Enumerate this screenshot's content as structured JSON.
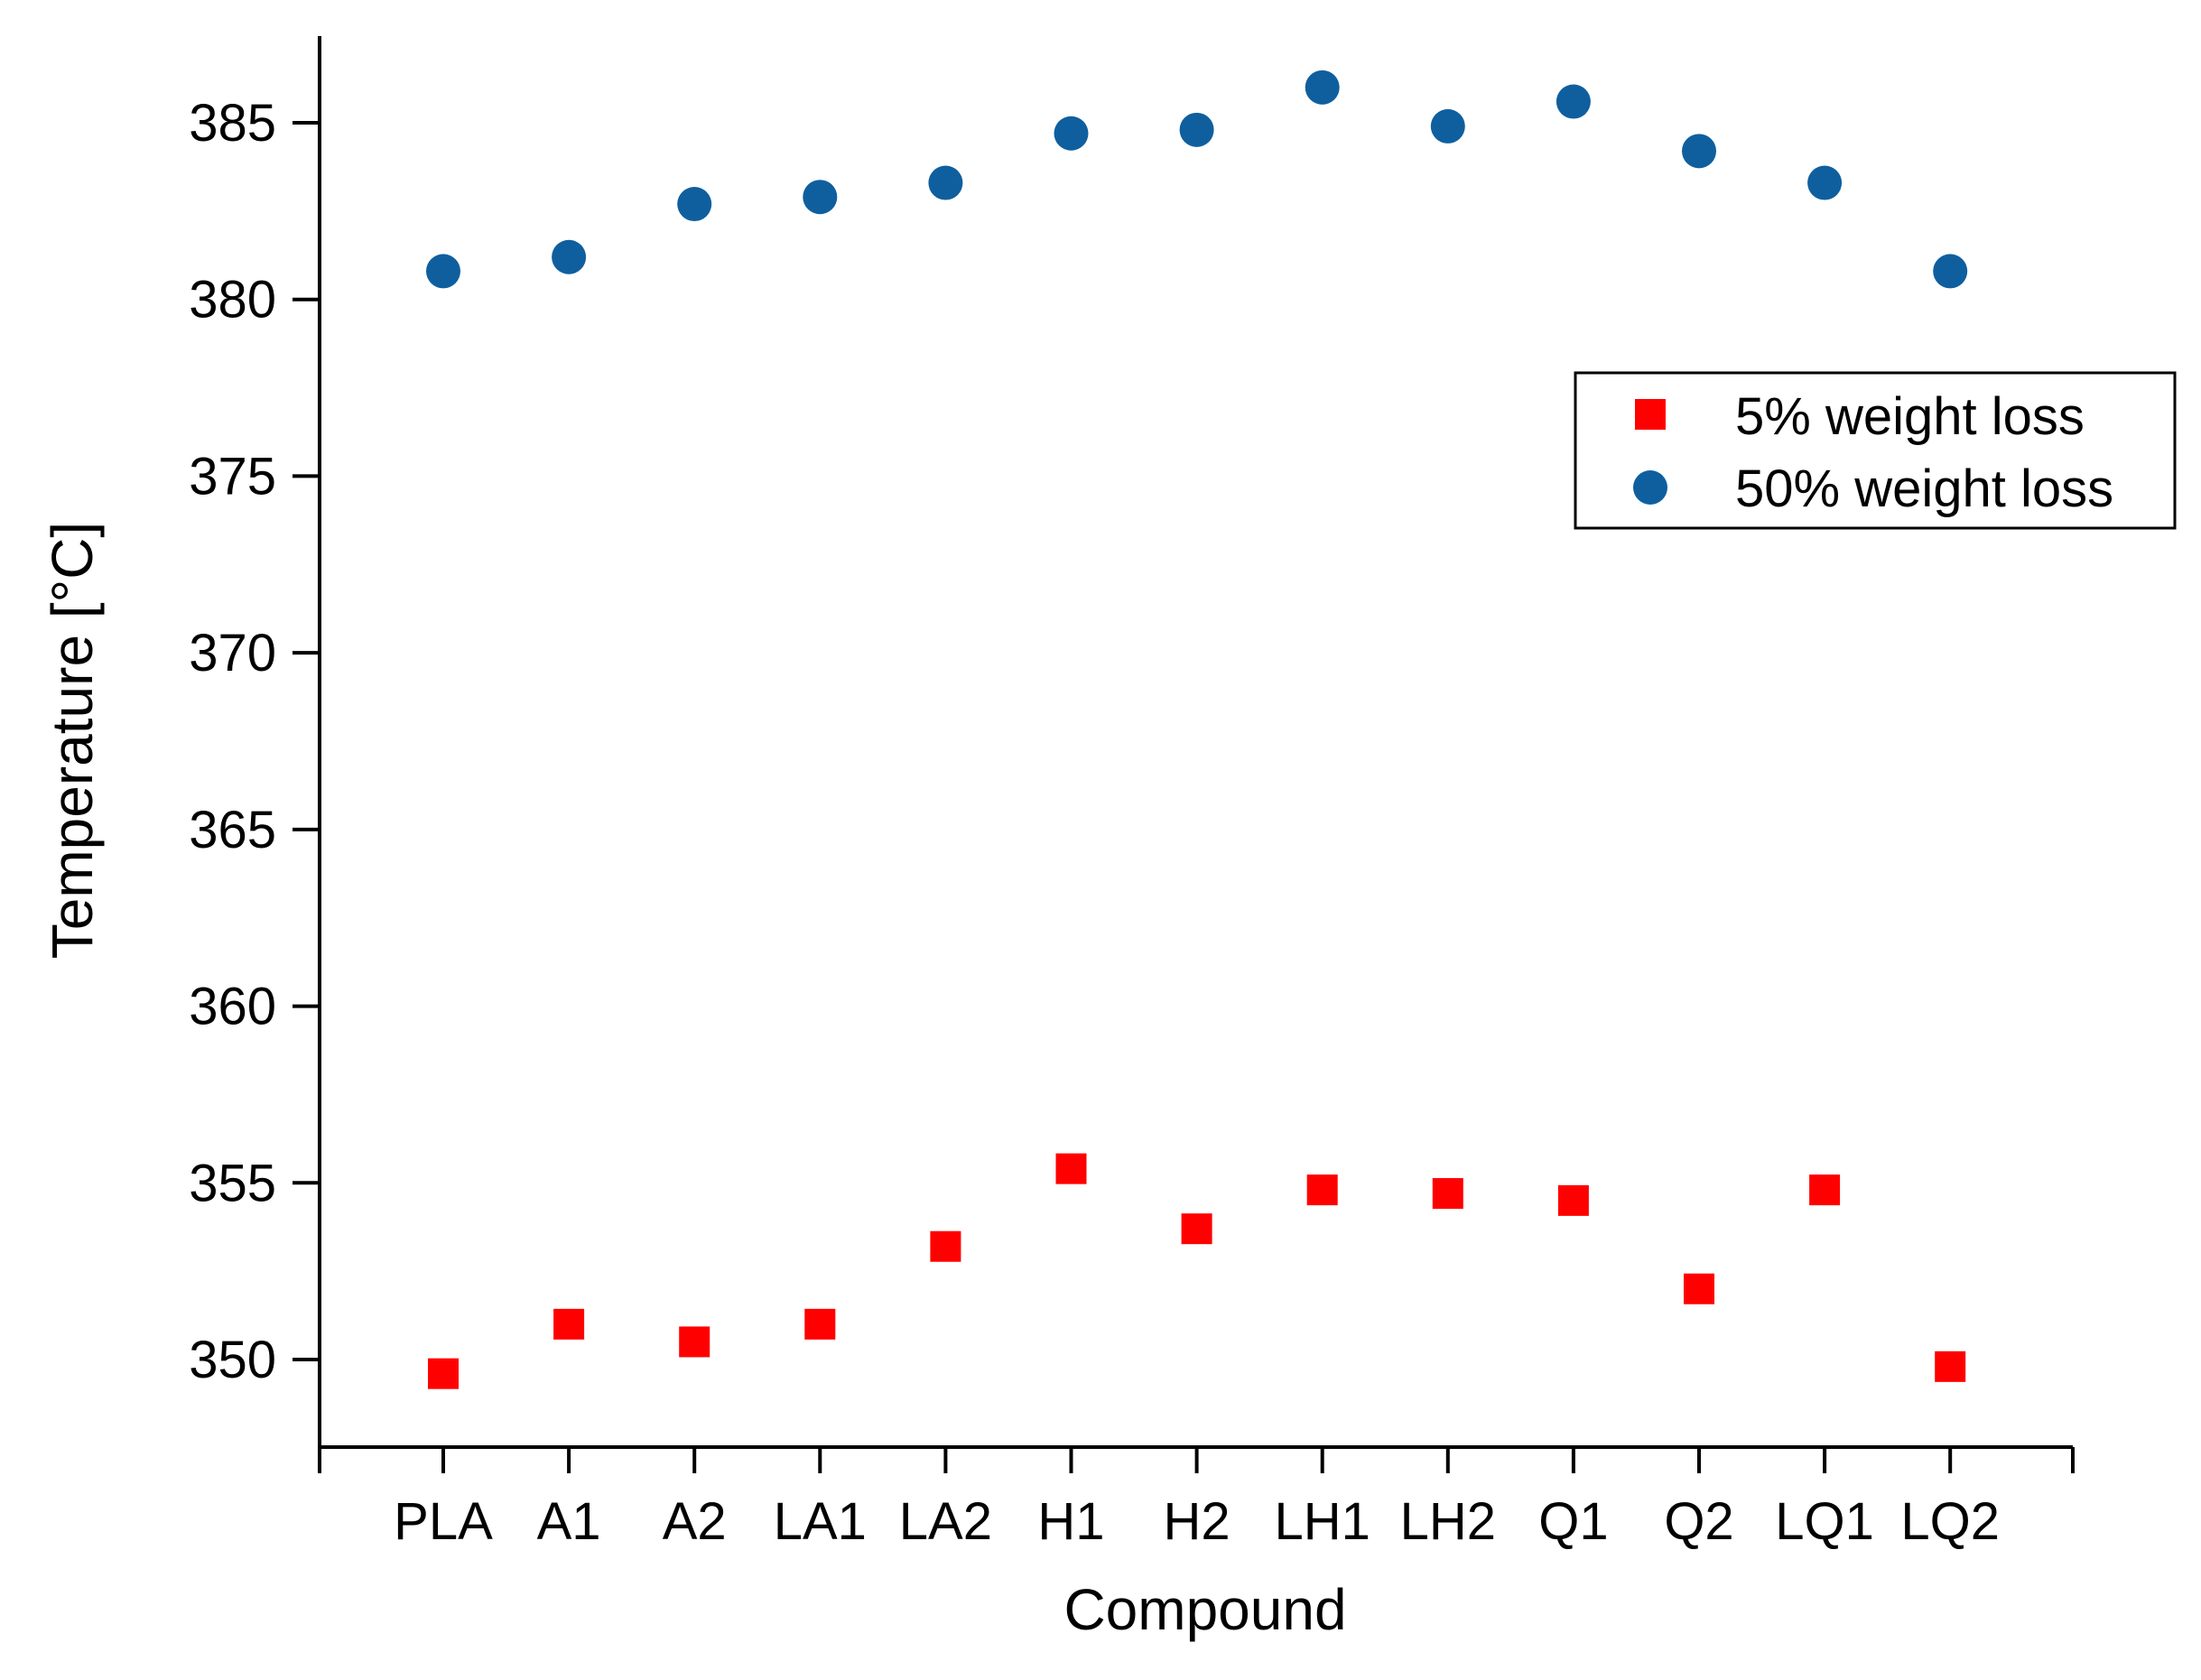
{
  "chart_data": {
    "type": "scatter",
    "title": "",
    "xlabel": "Compound",
    "ylabel": "Temperature [°C]",
    "categories": [
      "PLA",
      "A1",
      "A2",
      "LA1",
      "LA2",
      "H1",
      "H2",
      "LH1",
      "LH2",
      "Q1",
      "Q2",
      "LQ1",
      "LQ2"
    ],
    "ylim": [
      347.5,
      387.5
    ],
    "yticks": [
      350,
      355,
      360,
      365,
      370,
      375,
      380,
      385
    ],
    "ytick_labels": [
      "350",
      "355",
      "360",
      "365",
      "370",
      "375",
      "380",
      "385"
    ],
    "grid": false,
    "legend_position": "right",
    "series": [
      {
        "name": "5% weight loss",
        "marker": "square",
        "color": "#ff0000",
        "values": [
          349.6,
          351.0,
          350.5,
          351.0,
          353.2,
          355.4,
          353.7,
          354.8,
          354.7,
          354.5,
          352.0,
          354.8,
          349.8
        ]
      },
      {
        "name": "50% weight loss",
        "marker": "circle",
        "color": "#0f5f9f",
        "values": [
          380.8,
          381.2,
          382.7,
          382.9,
          383.3,
          384.7,
          384.8,
          386.0,
          384.9,
          385.6,
          384.2,
          383.3,
          380.8
        ]
      }
    ]
  }
}
